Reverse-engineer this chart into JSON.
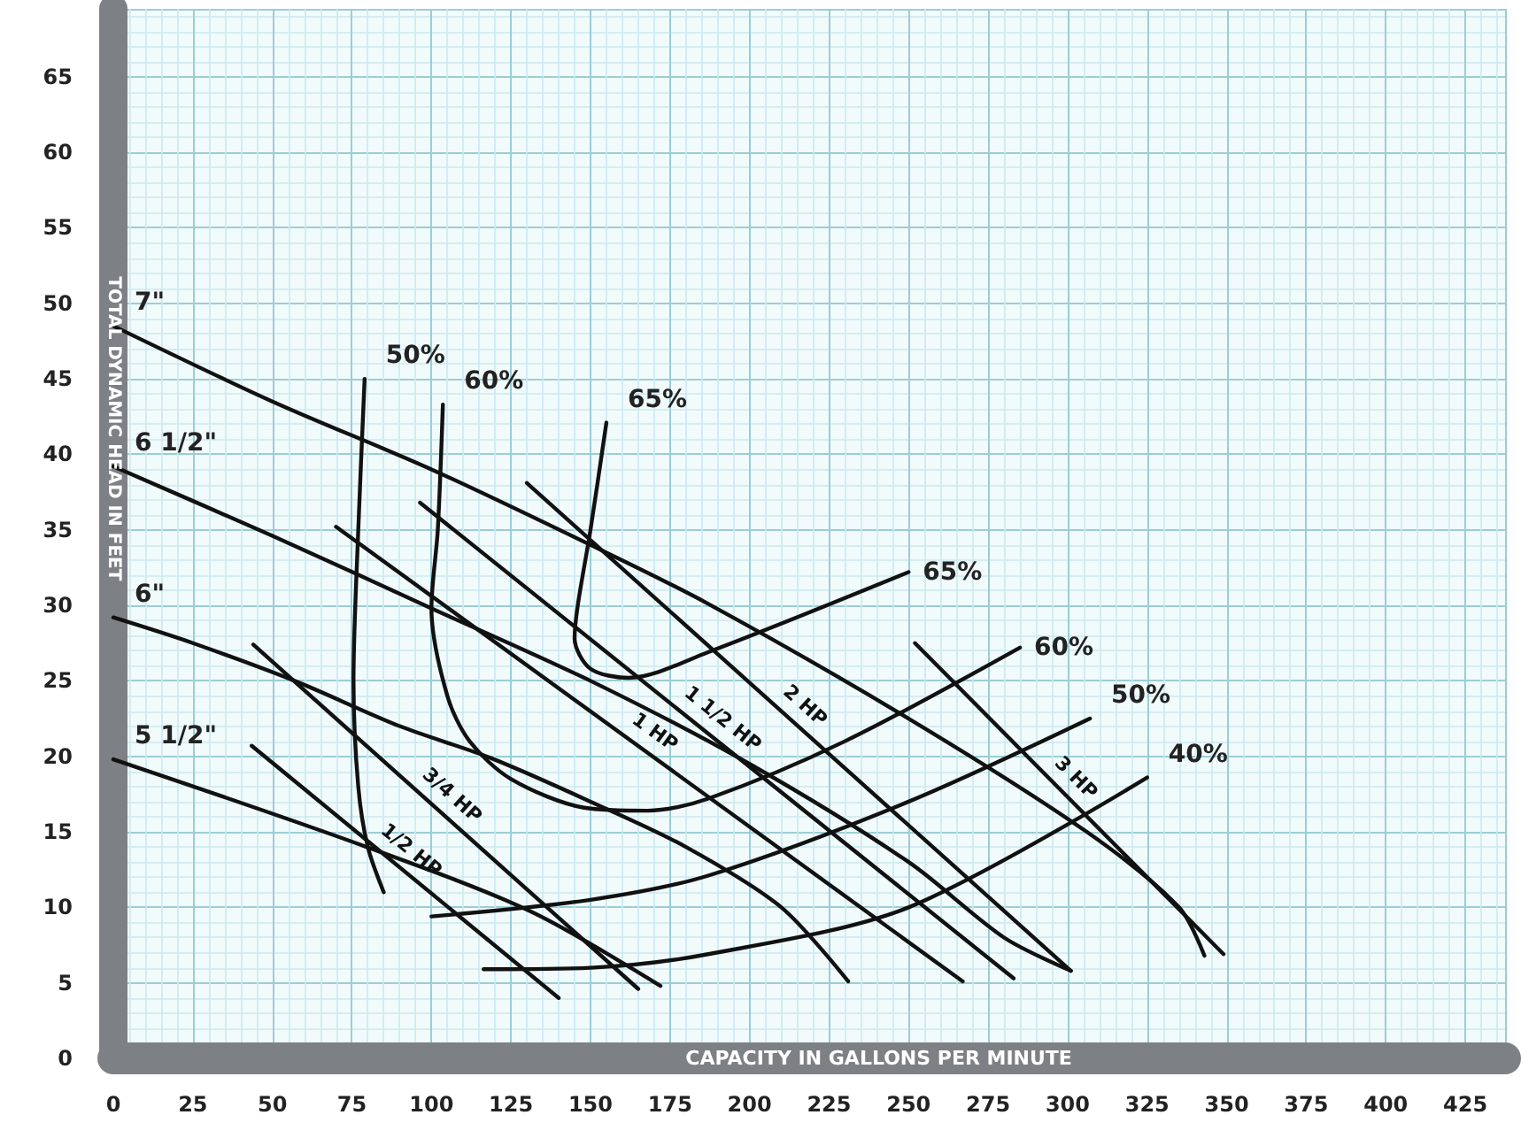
{
  "chart_data": {
    "type": "line",
    "xlabel": "CAPACITY IN GALLONS PER MINUTE",
    "ylabel": "TOTAL DYNAMIC HEAD IN FEET",
    "xlim": [
      0,
      437.5
    ],
    "xticks": [
      0,
      25,
      50,
      75,
      100,
      125,
      150,
      175,
      200,
      225,
      250,
      275,
      300,
      325,
      350,
      375,
      400,
      425
    ],
    "ylim": [
      0,
      69.5
    ],
    "yticks": [
      0,
      5,
      10,
      15,
      20,
      25,
      30,
      35,
      40,
      45,
      50,
      55,
      60,
      65
    ],
    "grid": true,
    "marker": "none",
    "line_style": "solid",
    "series": [
      {
        "name": "7\"",
        "color": "#111111",
        "x": [
          0,
          50,
          100,
          150,
          187,
          250,
          306,
          335,
          343
        ],
        "values": [
          48.5,
          43.5,
          39,
          34,
          30.1,
          22.5,
          15,
          10,
          6.8
        ]
      },
      {
        "name": "6 1/2\"",
        "color": "#111111",
        "x": [
          0,
          50,
          100,
          150,
          200,
          250,
          280,
          301
        ],
        "values": [
          39.2,
          34.6,
          29.8,
          25,
          19.5,
          13,
          8,
          5.8
        ]
      },
      {
        "name": "6\"",
        "color": "#111111",
        "x": [
          0,
          25,
          57,
          90,
          118.5,
          150,
          180,
          210,
          231
        ],
        "values": [
          29.2,
          27.5,
          25,
          22,
          19.9,
          17,
          14,
          10,
          5.1
        ]
      },
      {
        "name": "5 1/2\"",
        "color": "#111111",
        "x": [
          0,
          79.6,
          131.5,
          172
        ],
        "values": [
          19.8,
          14,
          9.7,
          4.8
        ]
      },
      {
        "name": "1/2 HP",
        "color": "#111111",
        "x": [
          43.5,
          140
        ],
        "values": [
          20.7,
          4
        ]
      },
      {
        "name": "3/4 HP",
        "color": "#111111",
        "x": [
          44,
          165
        ],
        "values": [
          27.4,
          4.6
        ]
      },
      {
        "name": "1 HP",
        "color": "#111111",
        "x": [
          70,
          267
        ],
        "values": [
          35.2,
          5.1
        ]
      },
      {
        "name": "1 1/2 HP",
        "color": "#111111",
        "x": [
          96.4,
          283
        ],
        "values": [
          36.8,
          5.3
        ]
      },
      {
        "name": "2 HP",
        "color": "#111111",
        "x": [
          130,
          301
        ],
        "values": [
          38.1,
          5.8
        ]
      },
      {
        "name": "3 HP",
        "color": "#111111",
        "x": [
          252,
          349
        ],
        "values": [
          27.5,
          6.9
        ]
      },
      {
        "name": "50%",
        "color": "#111111",
        "x": [
          79,
          77,
          75.5,
          77,
          80,
          85
        ],
        "values": [
          45,
          35,
          25,
          18,
          14,
          11
        ]
      },
      {
        "name": "60%",
        "color": "#111111",
        "x": [
          103.6,
          102,
          100,
          105,
          112,
          125,
          148,
          168,
          187,
          230,
          285
        ],
        "values": [
          43.3,
          35,
          29.8,
          24,
          21,
          18.5,
          16.6,
          16.4,
          17.2,
          21,
          27.2
        ]
      },
      {
        "name": "65%",
        "color": "#111111",
        "x": [
          155,
          150,
          146,
          145,
          150,
          162,
          187,
          250
        ],
        "values": [
          42.1,
          35,
          30,
          27.8,
          25.8,
          25.2,
          26.9,
          32.2
        ]
      },
      {
        "name": "50%",
        "color": "#111111",
        "x": [
          307,
          250,
          187,
          150,
          100
        ],
        "values": [
          22.5,
          17,
          12.1,
          10.5,
          9.4
        ]
      },
      {
        "name": "40%",
        "color": "#111111",
        "x": [
          325,
          250,
          187,
          150,
          116.4
        ],
        "values": [
          18.6,
          10,
          6.9,
          6,
          5.9
        ]
      }
    ],
    "annotations": [
      {
        "text": "65%",
        "x": 250,
        "y": 32.2
      },
      {
        "text": "60%",
        "x": 285,
        "y": 27.2
      }
    ]
  }
}
